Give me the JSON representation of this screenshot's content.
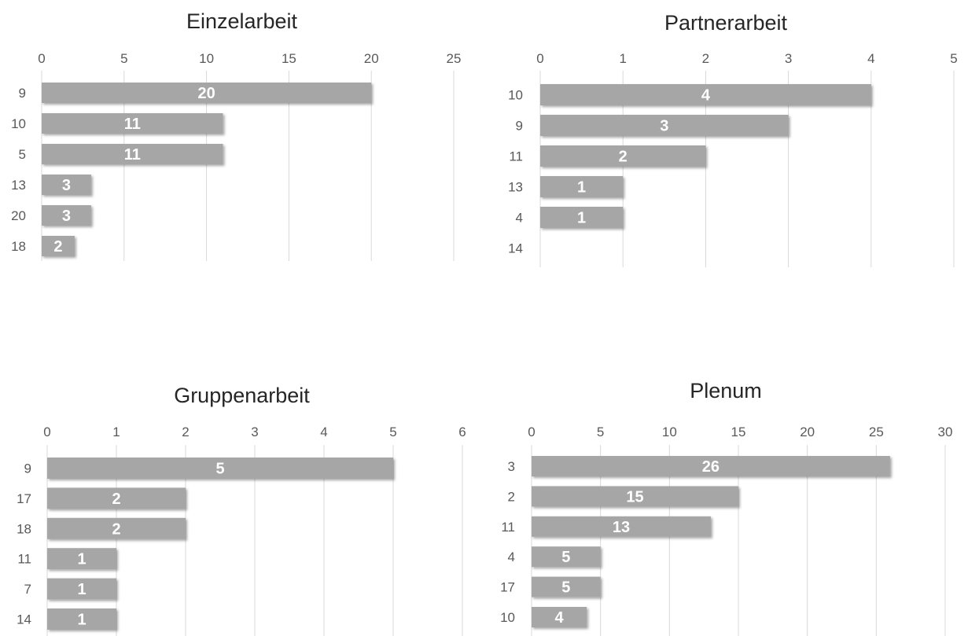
{
  "chart_data": [
    {
      "type": "bar",
      "orientation": "horizontal",
      "title": "Einzelarbeit",
      "categories": [
        "9",
        "10",
        "5",
        "13",
        "20",
        "18"
      ],
      "values": [
        20,
        11,
        11,
        3,
        3,
        2
      ],
      "xlim": [
        0,
        25
      ],
      "ticks": [
        "0",
        "5",
        "10",
        "15",
        "20",
        "25"
      ],
      "axis_position": "top",
      "grid": true,
      "bar_color": "#a6a6a6",
      "data_labels": true
    },
    {
      "type": "bar",
      "orientation": "horizontal",
      "title": "Partnerarbeit",
      "categories": [
        "10",
        "9",
        "11",
        "13",
        "4",
        "14"
      ],
      "values": [
        4,
        3,
        2,
        1,
        1,
        0
      ],
      "xlim": [
        0,
        5
      ],
      "ticks": [
        "0",
        "1",
        "2",
        "3",
        "4",
        "5"
      ],
      "axis_position": "top",
      "grid": true,
      "bar_color": "#a6a6a6",
      "data_labels": true
    },
    {
      "type": "bar",
      "orientation": "horizontal",
      "title": "Gruppenarbeit",
      "categories": [
        "9",
        "17",
        "18",
        "11",
        "7",
        "14"
      ],
      "values": [
        5,
        2,
        2,
        1,
        1,
        1
      ],
      "xlim": [
        0,
        6
      ],
      "ticks": [
        "0",
        "1",
        "2",
        "3",
        "4",
        "5",
        "6"
      ],
      "axis_position": "top",
      "grid": true,
      "bar_color": "#a6a6a6",
      "data_labels": true
    },
    {
      "type": "bar",
      "orientation": "horizontal",
      "title": "Plenum",
      "categories": [
        "3",
        "2",
        "11",
        "4",
        "17",
        "10"
      ],
      "values": [
        26,
        15,
        13,
        5,
        5,
        4
      ],
      "xlim": [
        0,
        30
      ],
      "ticks": [
        "0",
        "5",
        "10",
        "15",
        "20",
        "25",
        "30"
      ],
      "axis_position": "top",
      "grid": true,
      "bar_color": "#a6a6a6",
      "data_labels": true
    }
  ]
}
